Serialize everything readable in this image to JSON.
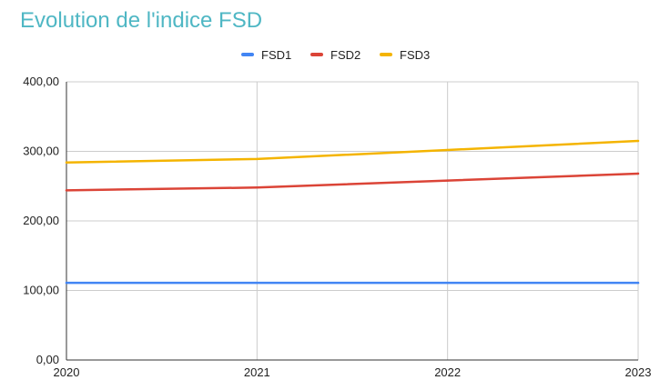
{
  "chart_data": {
    "type": "line",
    "title": "Evolution de l'indice FSD",
    "x": [
      "2020",
      "2021",
      "2022",
      "2023"
    ],
    "series": [
      {
        "name": "FSD1",
        "color": "#4285f4",
        "values": [
          111,
          111,
          111,
          111
        ]
      },
      {
        "name": "FSD2",
        "color": "#db4437",
        "values": [
          244,
          248,
          258,
          268
        ]
      },
      {
        "name": "FSD3",
        "color": "#f4b400",
        "values": [
          284,
          289,
          302,
          315
        ]
      }
    ],
    "y_ticks": [
      "0,00",
      "100,00",
      "200,00",
      "300,00",
      "400,00"
    ],
    "y_tick_values": [
      0,
      100,
      200,
      300,
      400
    ],
    "ylim": [
      0,
      400
    ],
    "xlabel": "",
    "ylabel": "",
    "grid": true,
    "legend": "top-center"
  }
}
